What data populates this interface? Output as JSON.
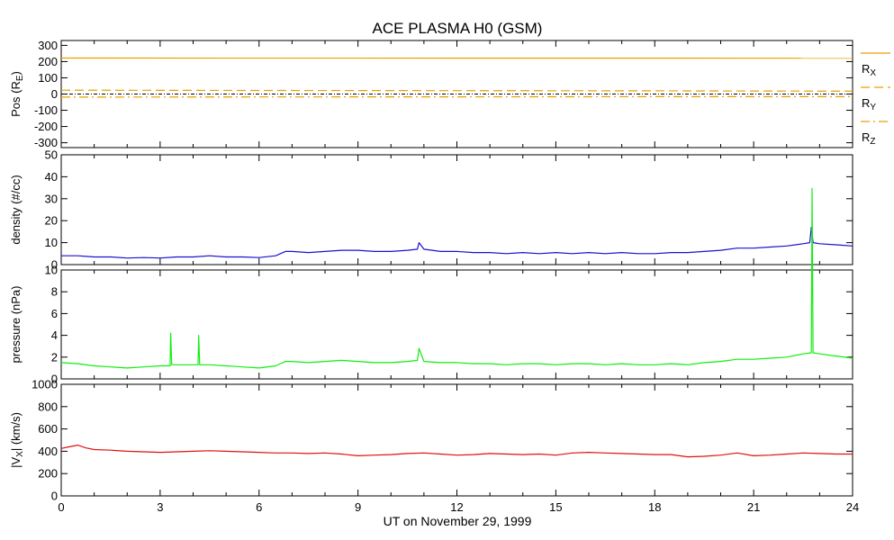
{
  "title": "ACE PLASMA H0 (GSM)",
  "xlabel": "UT on November 29, 1999",
  "colors": {
    "position": "#e8a000",
    "density": "#1a10d0",
    "pressure": "#10ee10",
    "velocity": "#e01010",
    "zero_line": "#000000"
  },
  "chart_data": [
    {
      "type": "line",
      "ylabel_main": "Pos (R",
      "ylabel_sub": "E",
      "ylabel_end": ")",
      "xlim": [
        0,
        24
      ],
      "ylim": [
        -330,
        330
      ],
      "x_ticks": [
        0,
        3,
        6,
        9,
        12,
        15,
        18,
        21,
        24
      ],
      "y_ticks": [
        -300,
        -200,
        -100,
        0,
        100,
        200,
        300
      ],
      "y_tick_labels": [
        "-300",
        "-200",
        "-100",
        "0",
        "100",
        "200",
        "300"
      ],
      "zero_line": true,
      "legend_position": "right",
      "series": [
        {
          "name_main": "R",
          "name_sub": "X",
          "style": "solid",
          "x": [
            0,
            24
          ],
          "values": [
            222,
            221
          ]
        },
        {
          "name_main": "R",
          "name_sub": "Y",
          "style": "dashed",
          "x": [
            0,
            6,
            12,
            18,
            24
          ],
          "values": [
            24,
            22,
            21,
            20,
            18
          ]
        },
        {
          "name_main": "R",
          "name_sub": "Z",
          "style": "dashdot",
          "x": [
            0,
            6,
            12,
            18,
            24
          ],
          "values": [
            -19,
            -18,
            -17,
            -16,
            -16
          ]
        }
      ]
    },
    {
      "type": "line",
      "ylabel": "density (#/cc)",
      "xlim": [
        0,
        24
      ],
      "ylim": [
        0,
        50
      ],
      "x_ticks": [
        0,
        3,
        6,
        9,
        12,
        15,
        18,
        21,
        24
      ],
      "y_ticks": [
        0,
        10,
        20,
        30,
        40,
        50
      ],
      "y_tick_labels": [
        "0",
        "10",
        "20",
        "30",
        "40",
        "50"
      ],
      "series": [
        {
          "x": [
            0,
            0.5,
            1,
            1.5,
            2,
            2.5,
            3,
            3.5,
            4,
            4.5,
            5,
            5.5,
            6,
            6.5,
            6.8,
            7,
            7.5,
            8,
            8.5,
            9,
            9.5,
            10,
            10.5,
            10.8,
            10.85,
            11,
            11.5,
            12,
            12.5,
            13,
            13.5,
            14,
            14.5,
            15,
            15.5,
            16,
            16.5,
            17,
            17.5,
            18,
            18.5,
            19,
            19.5,
            20,
            20.5,
            21,
            21.5,
            22,
            22.5,
            22.7,
            22.75,
            22.8,
            23,
            23.5,
            24
          ],
          "values": [
            4,
            4,
            3.5,
            3.5,
            3,
            3.2,
            3,
            3.5,
            3.5,
            4,
            3.5,
            3.5,
            3.2,
            4,
            6,
            6,
            5.5,
            6,
            6.5,
            6.5,
            6,
            6,
            6.5,
            7,
            10,
            7,
            6,
            6,
            5.5,
            5.5,
            5,
            5.5,
            5,
            5.5,
            5,
            5.5,
            5,
            5.5,
            5,
            5,
            5.5,
            5.5,
            6,
            6.5,
            7.5,
            7.5,
            8,
            8.5,
            9.5,
            10,
            17,
            10,
            9.5,
            9,
            8.5
          ]
        }
      ]
    },
    {
      "type": "line",
      "ylabel": "pressure (nPa)",
      "xlim": [
        0,
        24
      ],
      "ylim": [
        0,
        10
      ],
      "x_ticks": [
        0,
        3,
        6,
        9,
        12,
        15,
        18,
        21,
        24
      ],
      "y_ticks": [
        0,
        2,
        4,
        6,
        8,
        10
      ],
      "y_tick_labels": [
        "0",
        "2",
        "4",
        "6",
        "8",
        "10"
      ],
      "series": [
        {
          "x": [
            0,
            0.5,
            1,
            1.5,
            2,
            2.5,
            3,
            3.3,
            3.32,
            3.35,
            3.5,
            4,
            4.15,
            4.17,
            4.2,
            4.5,
            5,
            5.5,
            6,
            6.5,
            6.8,
            7,
            7.5,
            8,
            8.5,
            9,
            9.5,
            10,
            10.5,
            10.8,
            10.85,
            11,
            11.5,
            12,
            12.5,
            13,
            13.5,
            14,
            14.5,
            15,
            15.5,
            16,
            16.5,
            17,
            17.5,
            18,
            18.5,
            19,
            19.5,
            20,
            20.5,
            21,
            21.5,
            22,
            22.5,
            22.75,
            22.77,
            22.8,
            23,
            23.5,
            24
          ],
          "values": [
            1.5,
            1.4,
            1.2,
            1.1,
            1.0,
            1.1,
            1.2,
            1.2,
            4.2,
            1.3,
            1.3,
            1.3,
            1.3,
            4.0,
            1.3,
            1.3,
            1.2,
            1.1,
            1.0,
            1.2,
            1.6,
            1.6,
            1.5,
            1.6,
            1.7,
            1.6,
            1.5,
            1.5,
            1.6,
            1.7,
            2.8,
            1.6,
            1.5,
            1.5,
            1.4,
            1.4,
            1.3,
            1.4,
            1.4,
            1.3,
            1.4,
            1.4,
            1.3,
            1.4,
            1.3,
            1.3,
            1.4,
            1.3,
            1.5,
            1.6,
            1.8,
            1.8,
            1.9,
            2.0,
            2.3,
            2.4,
            17.5,
            2.4,
            2.3,
            2.1,
            1.9
          ]
        }
      ]
    },
    {
      "type": "line",
      "ylabel_pre": "|V",
      "ylabel_sub": "X",
      "ylabel_end": "| (km/s)",
      "xlim": [
        0,
        24
      ],
      "ylim": [
        0,
        1000
      ],
      "x_ticks": [
        0,
        3,
        6,
        9,
        12,
        15,
        18,
        21,
        24
      ],
      "x_tick_labels": [
        "0",
        "3",
        "6",
        "9",
        "12",
        "15",
        "18",
        "21",
        "24"
      ],
      "y_ticks": [
        0,
        200,
        400,
        600,
        800,
        1000
      ],
      "y_tick_labels": [
        "0",
        "200",
        "400",
        "600",
        "800",
        "1000"
      ],
      "series": [
        {
          "x": [
            0,
            0.25,
            0.5,
            0.75,
            1,
            1.5,
            2,
            2.5,
            3,
            3.5,
            4,
            4.5,
            5,
            5.5,
            6,
            6.5,
            7,
            7.5,
            8,
            8.5,
            9,
            9.5,
            10,
            10.5,
            11,
            11.5,
            12,
            12.5,
            13,
            13.5,
            14,
            14.5,
            15,
            15.5,
            16,
            16.5,
            17,
            17.5,
            18,
            18.5,
            19,
            19.5,
            20,
            20.5,
            21,
            21.5,
            22,
            22.5,
            23,
            23.5,
            24
          ],
          "values": [
            425,
            440,
            455,
            430,
            415,
            410,
            400,
            395,
            390,
            395,
            400,
            405,
            400,
            395,
            390,
            385,
            385,
            380,
            385,
            375,
            360,
            365,
            370,
            380,
            385,
            375,
            365,
            370,
            380,
            375,
            370,
            375,
            365,
            385,
            390,
            385,
            380,
            375,
            370,
            370,
            350,
            355,
            365,
            385,
            360,
            365,
            375,
            385,
            380,
            375,
            375
          ]
        }
      ]
    }
  ]
}
